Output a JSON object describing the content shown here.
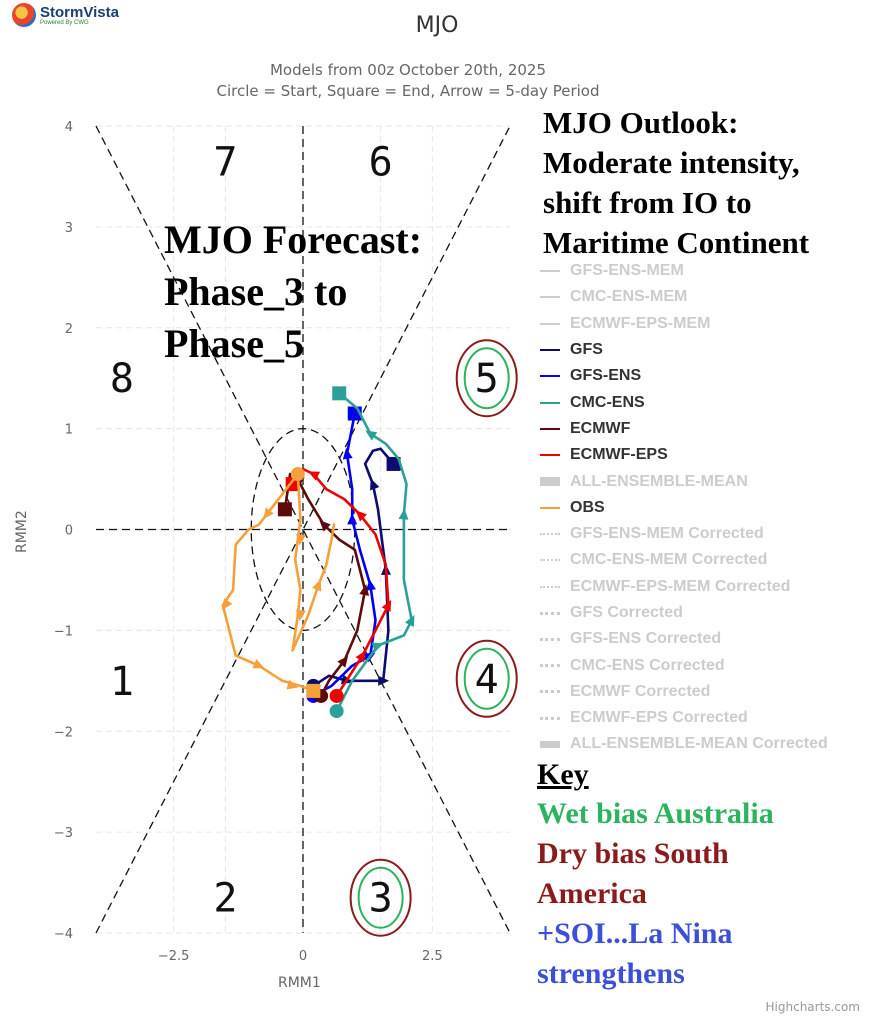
{
  "logo": {
    "brand": "StormVista",
    "tagline": "Powered By CWG"
  },
  "header": {
    "title": "MJO",
    "subtitle_lines": [
      "Models from 00z October 20th, 2025",
      "Circle = Start, Square = End, Arrow = 5-day Period"
    ]
  },
  "annotations": {
    "forecast_lines": [
      "MJO Forecast:",
      "Phase_3 to",
      "Phase_5"
    ],
    "outlook_lines": [
      "MJO Outlook:",
      "Moderate intensity,",
      "shift from IO to",
      "Maritime Continent"
    ],
    "key_title": "Key",
    "key_lines": [
      {
        "text": "Wet bias Australia",
        "color": "#2db35d"
      },
      {
        "text": "Dry bias South",
        "color": "#8b1a1a"
      },
      {
        "text": "America",
        "color": "#8b1a1a"
      },
      {
        "text": "+SOI...La Nina",
        "color": "#3b4fd8"
      },
      {
        "text": "strengthens",
        "color": "#3b4fd8"
      }
    ]
  },
  "credits": "Highcharts.com",
  "chart_data": {
    "type": "line",
    "title": "MJO",
    "xlabel": "RMM1",
    "ylabel": "RMM2",
    "xlim": [
      -4,
      4
    ],
    "ylim": [
      -4,
      4
    ],
    "xticks": [
      {
        "v": -2.5,
        "label": "−2.5"
      },
      {
        "v": 0,
        "label": "0"
      },
      {
        "v": 2.5,
        "label": "2.5"
      }
    ],
    "yticks": [
      {
        "v": 4,
        "label": "4"
      },
      {
        "v": 3,
        "label": "3"
      },
      {
        "v": 2,
        "label": "2"
      },
      {
        "v": 1,
        "label": "1"
      },
      {
        "v": 0,
        "label": "0"
      },
      {
        "v": -1,
        "label": "−1"
      },
      {
        "v": -2,
        "label": "−2"
      },
      {
        "v": -3,
        "label": "−3"
      },
      {
        "v": -4,
        "label": "−4"
      }
    ],
    "phase_labels": [
      {
        "label": "1",
        "x": -3.5,
        "y": -1.5,
        "circled": false
      },
      {
        "label": "2",
        "x": -1.5,
        "y": -3.65,
        "circled": false
      },
      {
        "label": "3",
        "x": 1.5,
        "y": -3.65,
        "circled": true,
        "inner": "#2db35d",
        "outer": "#8b1a1a"
      },
      {
        "label": "4",
        "x": 3.55,
        "y": -1.48,
        "circled": true,
        "inner": "#2db35d",
        "outer": "#8b1a1a"
      },
      {
        "label": "5",
        "x": 3.55,
        "y": 1.5,
        "circled": true,
        "inner": "#2db35d",
        "outer": "#8b1a1a"
      },
      {
        "label": "6",
        "x": 1.5,
        "y": 3.65,
        "circled": false
      },
      {
        "label": "7",
        "x": -1.5,
        "y": 3.65,
        "circled": false
      },
      {
        "label": "8",
        "x": -3.5,
        "y": 1.5,
        "circled": false
      }
    ],
    "series": [
      {
        "name": "GFS-ENS-MEM",
        "color": "#cccccc",
        "style": "solid",
        "visible": false
      },
      {
        "name": "CMC-ENS-MEM",
        "color": "#cccccc",
        "style": "solid",
        "visible": false
      },
      {
        "name": "ECMWF-EPS-MEM",
        "color": "#cccccc",
        "style": "solid",
        "visible": false
      },
      {
        "name": "GFS",
        "color": "#0c0c6e",
        "style": "solid",
        "visible": true,
        "points": [
          [
            0.2,
            -1.55
          ],
          [
            0.5,
            -1.45
          ],
          [
            0.85,
            -1.5
          ],
          [
            1.3,
            -1.5
          ],
          [
            1.55,
            -1.5
          ],
          [
            1.65,
            -1.0
          ],
          [
            1.6,
            -0.4
          ],
          [
            1.45,
            0.2
          ],
          [
            1.35,
            0.45
          ],
          [
            1.2,
            0.65
          ],
          [
            1.35,
            0.78
          ],
          [
            1.5,
            0.8
          ],
          [
            1.75,
            0.65
          ]
        ],
        "arrows": [
          [
            0.85,
            -1.5
          ],
          [
            1.55,
            -1.5
          ],
          [
            1.6,
            -0.4
          ],
          [
            1.35,
            0.45
          ]
        ]
      },
      {
        "name": "GFS-ENS",
        "color": "#0000ee",
        "style": "solid",
        "visible": true,
        "points": [
          [
            0.2,
            -1.65
          ],
          [
            0.55,
            -1.55
          ],
          [
            0.95,
            -1.35
          ],
          [
            1.3,
            -1.25
          ],
          [
            1.4,
            -0.9
          ],
          [
            1.3,
            -0.55
          ],
          [
            1.1,
            -0.2
          ],
          [
            0.95,
            0.1
          ],
          [
            0.95,
            0.4
          ],
          [
            0.85,
            0.75
          ],
          [
            1.0,
            1.15
          ]
        ],
        "arrows": [
          [
            1.3,
            -1.25
          ],
          [
            1.3,
            -0.55
          ],
          [
            0.95,
            0.1
          ],
          [
            0.85,
            0.75
          ]
        ]
      },
      {
        "name": "CMC-ENS",
        "color": "#2aa198",
        "style": "solid",
        "visible": true,
        "points": [
          [
            0.65,
            -1.8
          ],
          [
            0.95,
            -1.5
          ],
          [
            1.45,
            -1.15
          ],
          [
            1.95,
            -1.05
          ],
          [
            2.1,
            -0.9
          ],
          [
            1.95,
            -0.5
          ],
          [
            1.95,
            0.15
          ],
          [
            2.0,
            0.45
          ],
          [
            1.85,
            0.7
          ],
          [
            1.6,
            0.85
          ],
          [
            1.3,
            0.95
          ],
          [
            1.05,
            1.2
          ],
          [
            0.7,
            1.35
          ]
        ],
        "arrows": [
          [
            1.45,
            -1.15
          ],
          [
            2.1,
            -0.9
          ],
          [
            1.95,
            0.15
          ],
          [
            1.3,
            0.95
          ]
        ]
      },
      {
        "name": "ECMWF",
        "color": "#5c0a0a",
        "style": "solid",
        "visible": true,
        "points": [
          [
            0.35,
            -1.65
          ],
          [
            0.5,
            -1.5
          ],
          [
            0.8,
            -1.3
          ],
          [
            1.05,
            -1.0
          ],
          [
            1.2,
            -0.6
          ],
          [
            1.0,
            -0.2
          ],
          [
            0.7,
            -0.1
          ],
          [
            0.4,
            0.05
          ],
          [
            0.1,
            0.3
          ],
          [
            -0.1,
            0.5
          ],
          [
            -0.25,
            0.55
          ],
          [
            -0.35,
            0.2
          ]
        ],
        "arrows": [
          [
            0.8,
            -1.3
          ],
          [
            1.2,
            -0.6
          ],
          [
            0.4,
            0.05
          ],
          [
            -0.1,
            0.5
          ]
        ]
      },
      {
        "name": "ECMWF-EPS",
        "color": "#ee0000",
        "style": "solid",
        "visible": true,
        "points": [
          [
            0.65,
            -1.65
          ],
          [
            0.9,
            -1.45
          ],
          [
            1.15,
            -1.25
          ],
          [
            1.4,
            -1.0
          ],
          [
            1.65,
            -0.75
          ],
          [
            1.6,
            -0.35
          ],
          [
            1.4,
            -0.05
          ],
          [
            1.1,
            0.15
          ],
          [
            0.8,
            0.3
          ],
          [
            0.45,
            0.4
          ],
          [
            0.2,
            0.55
          ],
          [
            0.0,
            0.6
          ],
          [
            -0.15,
            0.55
          ],
          [
            -0.2,
            0.45
          ]
        ],
        "arrows": [
          [
            1.15,
            -1.25
          ],
          [
            1.65,
            -0.75
          ],
          [
            1.1,
            0.15
          ],
          [
            0.2,
            0.55
          ]
        ]
      },
      {
        "name": "ALL-ENSEMBLE-MEAN",
        "color": "#cccccc",
        "style": "thick",
        "visible": false
      },
      {
        "name": "OBS",
        "color": "#f5a03a",
        "style": "solid",
        "visible": true,
        "points": [
          [
            -0.1,
            0.55
          ],
          [
            -0.55,
            0.25
          ],
          [
            -0.85,
            0.05
          ],
          [
            -1.05,
            0.0
          ],
          [
            -1.3,
            -0.15
          ],
          [
            -1.35,
            -0.6
          ],
          [
            -1.55,
            -0.75
          ],
          [
            -1.35,
            -1.15
          ],
          [
            -1.3,
            -1.25
          ],
          [
            -0.85,
            -1.35
          ],
          [
            -0.4,
            -1.5
          ],
          [
            -0.05,
            -1.55
          ],
          [
            0.2,
            -1.6
          ]
        ],
        "arrows": [
          [
            -0.7,
            0.15
          ],
          [
            -1.5,
            -0.75
          ],
          [
            -0.85,
            -1.35
          ],
          [
            -0.2,
            -1.55
          ]
        ]
      },
      {
        "name": "OBS",
        "color": "#f5a03a",
        "style": "solid",
        "visible": true,
        "legend": false,
        "points": [
          [
            -0.1,
            0.55
          ],
          [
            -0.05,
            0.1
          ],
          [
            -0.15,
            -0.3
          ],
          [
            -0.05,
            -0.6
          ],
          [
            -0.1,
            -0.85
          ],
          [
            -0.2,
            -1.2
          ],
          [
            0.1,
            -0.85
          ],
          [
            0.3,
            -0.55
          ],
          [
            0.45,
            -0.35
          ],
          [
            0.55,
            -0.1
          ],
          [
            0.6,
            0.05
          ]
        ],
        "arrows": [
          [
            -0.05,
            -0.1
          ],
          [
            -0.05,
            -0.85
          ],
          [
            0.3,
            -0.55
          ]
        ]
      },
      {
        "name": "GFS-ENS-MEM Corrected",
        "color": "#cccccc",
        "style": "dotted",
        "visible": false
      },
      {
        "name": "CMC-ENS-MEM Corrected",
        "color": "#cccccc",
        "style": "dotted",
        "visible": false
      },
      {
        "name": "ECMWF-EPS-MEM Corrected",
        "color": "#cccccc",
        "style": "dotted",
        "visible": false
      },
      {
        "name": "GFS Corrected",
        "color": "#cccccc",
        "style": "dashed",
        "visible": false
      },
      {
        "name": "GFS-ENS Corrected",
        "color": "#cccccc",
        "style": "dashed",
        "visible": false
      },
      {
        "name": "CMC-ENS Corrected",
        "color": "#cccccc",
        "style": "dashed",
        "visible": false
      },
      {
        "name": "ECMWF Corrected",
        "color": "#cccccc",
        "style": "dashed",
        "visible": false
      },
      {
        "name": "ECMWF-EPS Corrected",
        "color": "#cccccc",
        "style": "dashed",
        "visible": false
      },
      {
        "name": "ALL-ENSEMBLE-MEAN Corrected",
        "color": "#cccccc",
        "style": "thickdashed",
        "visible": false
      }
    ]
  }
}
